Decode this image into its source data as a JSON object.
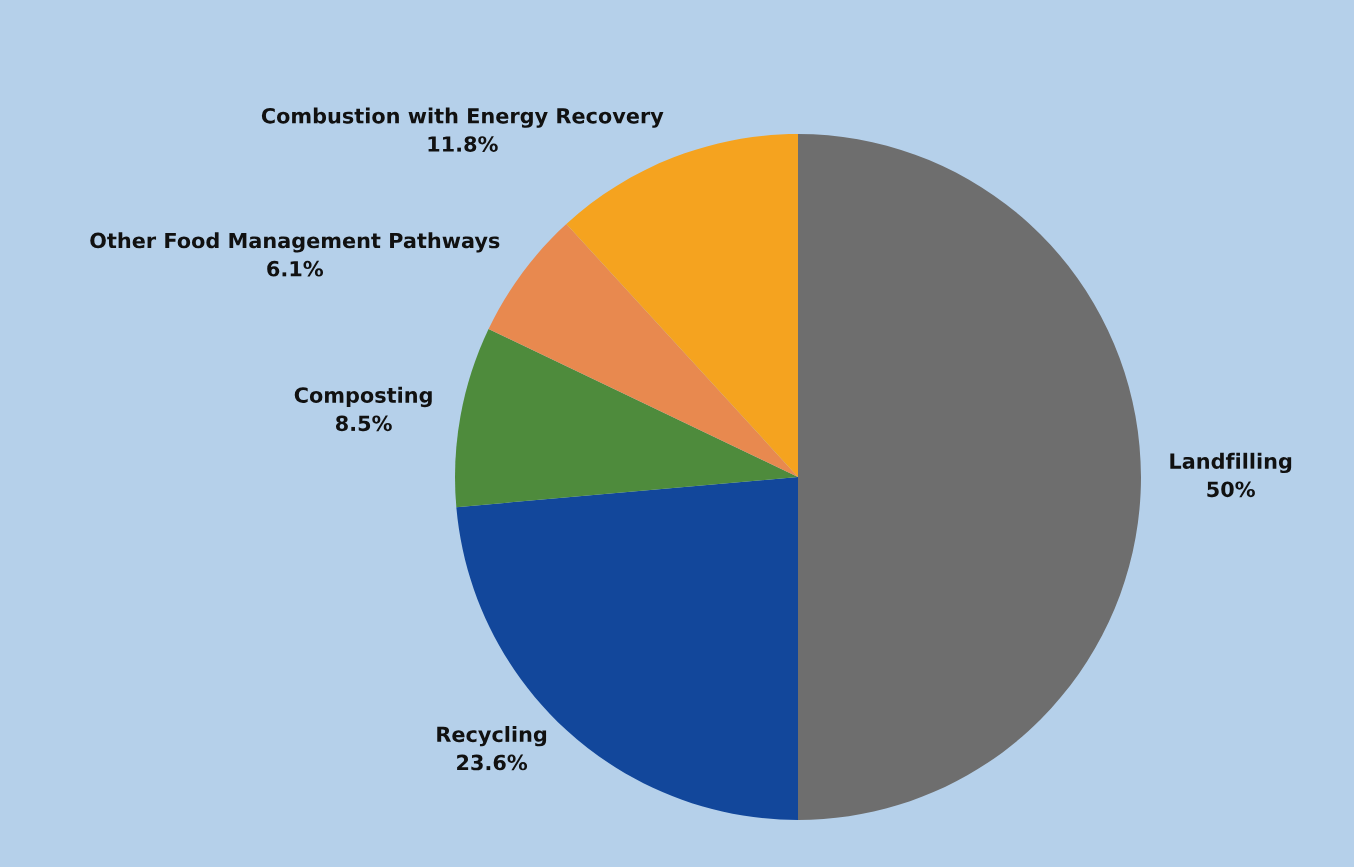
{
  "chart_data": {
    "type": "pie",
    "categories": [
      "Landfilling",
      "Recycling",
      "Composting",
      "Other Food Management Pathways",
      "Combustion with Energy Recovery"
    ],
    "values": [
      50,
      23.6,
      8.5,
      6.1,
      11.8
    ],
    "value_labels": [
      "50%",
      "23.6%",
      "8.5%",
      "6.1%",
      "11.8%"
    ],
    "colors": [
      "#6e6e6e",
      "#12479b",
      "#4e8b3c",
      "#e8894f",
      "#f5a31f"
    ],
    "legend": false
  }
}
